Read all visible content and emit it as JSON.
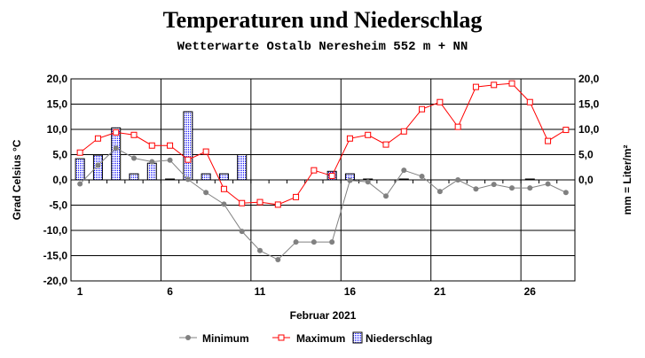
{
  "chart_data": {
    "type": "line+bar",
    "title": "Temperaturen und Niederschlag",
    "subtitle": "Wetterwarte Ostalb Neresheim 552 m + NN",
    "xlabel": "Februar 2021",
    "ylabel": "Grad Celsius °C",
    "y2label": "mm = Liter/m²",
    "x": [
      1,
      2,
      3,
      4,
      5,
      6,
      7,
      8,
      9,
      10,
      11,
      12,
      13,
      14,
      15,
      16,
      17,
      18,
      19,
      20,
      21,
      22,
      23,
      24,
      25,
      26,
      27,
      28
    ],
    "xticks": [
      "1",
      "6",
      "11",
      "16",
      "21",
      "26"
    ],
    "ylim": [
      -20,
      20
    ],
    "yticks": [
      "20,0",
      "15,0",
      "10,0",
      "5,0",
      "0,0",
      "-5,0",
      "-10,0",
      "-15,0",
      "-20,0"
    ],
    "y2lim": [
      -20,
      20
    ],
    "y2ticks": [
      "20,0",
      "15,0",
      "10,0",
      "5,0",
      "0,0"
    ],
    "grid": true,
    "legend": "bottom",
    "series": [
      {
        "name": "Minimum",
        "kind": "line",
        "color": "#808080",
        "values": [
          -0.8,
          2.9,
          6.3,
          4.3,
          3.6,
          3.9,
          0.1,
          -2.5,
          -4.8,
          -10.2,
          -14.0,
          -15.8,
          -12.3,
          -12.3,
          -12.3,
          -0.1,
          -0.4,
          -3.2,
          1.9,
          0.7,
          -2.3,
          0.0,
          -1.8,
          -0.9,
          -1.6,
          -1.6,
          -0.8,
          -2.5
        ]
      },
      {
        "name": "Maximum",
        "kind": "line",
        "color": "#ff0000",
        "values": [
          5.4,
          8.2,
          9.4,
          8.9,
          6.8,
          6.8,
          4.0,
          5.6,
          -1.8,
          -4.6,
          -4.4,
          -4.9,
          -3.4,
          1.9,
          0.8,
          8.2,
          8.9,
          7.0,
          9.6,
          14.0,
          15.4,
          10.5,
          18.4,
          18.8,
          19.1,
          15.4,
          7.7,
          9.9
        ]
      },
      {
        "name": "Niederschlag",
        "kind": "bar",
        "color": "#0000ff",
        "values": [
          4.2,
          4.9,
          10.3,
          1.2,
          3.3,
          0.1,
          13.5,
          1.2,
          1.2,
          5.0,
          0,
          0,
          0,
          0,
          1.7,
          1.2,
          0.1,
          0,
          0.1,
          0,
          0,
          0,
          0,
          0,
          0,
          0.1,
          0,
          0
        ]
      }
    ]
  }
}
